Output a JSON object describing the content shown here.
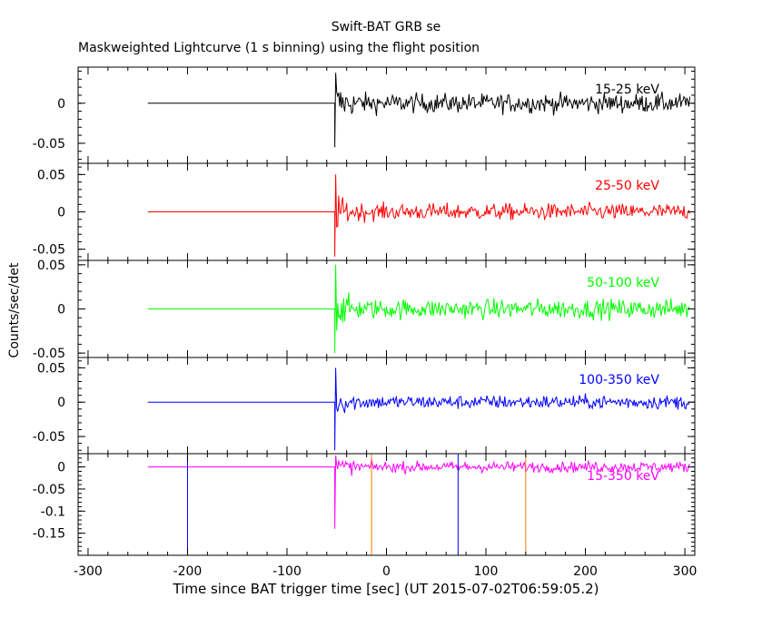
{
  "title": "Swift-BAT GRB se",
  "subtitle": "Maskweighted Lightcurve (1 s binning) using the flight position",
  "xlabel": "Time since BAT trigger time [sec] (UT 2015-07-02T06:59:05.2)",
  "ylabel": "Counts/sec/det",
  "chart_data": {
    "type": "line",
    "x_axis": {
      "range": [
        -310,
        310
      ],
      "ticks": [
        -300,
        -200,
        -100,
        0,
        100,
        200,
        300
      ],
      "tick_labels": [
        "-300",
        "-200",
        "-100",
        "0",
        "100",
        "200",
        "300"
      ]
    },
    "data_start": -240,
    "flat_until": -52,
    "trigger_time": -52,
    "panels": [
      {
        "name": "15-25 keV",
        "color": "#000000",
        "ylim": [
          -0.075,
          0.045
        ],
        "ticks": [
          -0.05,
          0
        ],
        "tick_labels": [
          "-0.05",
          "0"
        ],
        "noise": 0.012,
        "spike_max": 0.038,
        "spike_min": -0.055
      },
      {
        "name": "25-50 keV",
        "color": "#ff0000",
        "ylim": [
          -0.065,
          0.065
        ],
        "ticks": [
          -0.05,
          0,
          0.05
        ],
        "tick_labels": [
          "-0.05",
          "0",
          "0.05"
        ],
        "noise": 0.011,
        "spike_max": 0.05,
        "spike_min": -0.06
      },
      {
        "name": "50-100 keV",
        "color": "#00ff00",
        "ylim": [
          -0.055,
          0.055
        ],
        "ticks": [
          -0.05,
          0,
          0.05
        ],
        "tick_labels": [
          "-0.05",
          "0",
          "0.05"
        ],
        "noise": 0.011,
        "spike_max": 0.05,
        "spike_min": -0.05
      },
      {
        "name": "100-350 keV",
        "color": "#0000ff",
        "ylim": [
          -0.075,
          0.065
        ],
        "ticks": [
          -0.05,
          0,
          0.05
        ],
        "tick_labels": [
          "-0.05",
          "0",
          "0.05"
        ],
        "noise": 0.01,
        "spike_max": 0.05,
        "spike_min": -0.07
      },
      {
        "name": "15-350 keV",
        "color": "#ff00ff",
        "ylim": [
          -0.2,
          0.03
        ],
        "ticks": [
          -0.15,
          -0.1,
          -0.05,
          0
        ],
        "tick_labels": [
          "-0.15",
          "-0.1",
          "-0.05",
          "0"
        ],
        "noise": 0.012,
        "spike_max": 0.03,
        "spike_min": -0.14
      }
    ],
    "markers": [
      {
        "x": -200,
        "color": "#0000ff"
      },
      {
        "x": -15,
        "color": "#ff8000"
      },
      {
        "x": 72,
        "color": "#0000ff"
      },
      {
        "x": 140,
        "color": "#ff8000"
      }
    ]
  }
}
